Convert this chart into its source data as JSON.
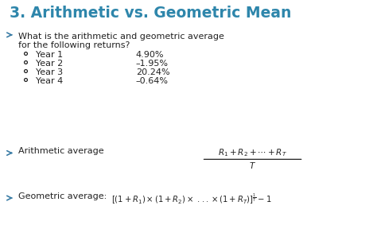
{
  "title": "3. Arithmetic vs. Geometric Mean",
  "title_color": "#2E86AB",
  "background_color": "#F0F0F0",
  "panel_color": "#FFFFFF",
  "bullet_color": "#3A7CA5",
  "text_color": "#222222",
  "bullet1_line1": "What is the arithmetic and geometric average",
  "bullet1_line2": "for the following returns?",
  "years": [
    "Year 1",
    "Year 2",
    "Year 3",
    "Year 4"
  ],
  "returns": [
    "4.90%",
    "–1.95%",
    "20.24%",
    "–0.64%"
  ],
  "arith_label": "Arithmetic average",
  "arith_formula_num": "$R_1+R_2+\\cdots+R_T$",
  "arith_formula_den": "$T$",
  "geo_label": "Geometric average: ",
  "geo_formula": "$[(1 + R_1) \\times (1 + R_2) \\times\\ ...\\times (1 + R_T)]^{\\frac{1}{T}}-1$"
}
